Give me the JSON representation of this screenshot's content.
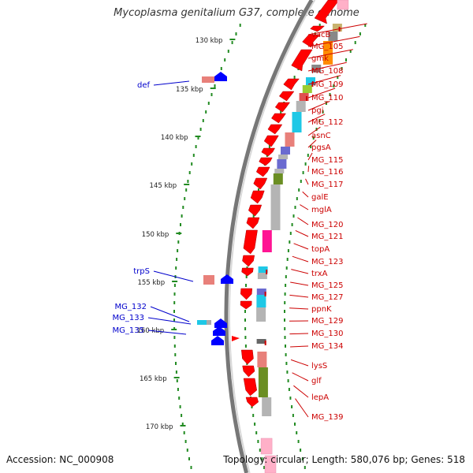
{
  "title": "Mycoplasma genitalium G37, complete genome",
  "footer": {
    "accession": "Accession: NC_000908",
    "summary": "Topology: circular; Length: 580,076 bp; Genes: 518"
  },
  "scale_ticks": [
    {
      "label": "130 kbp"
    },
    {
      "label": "135 kbp"
    },
    {
      "label": "140 kbp"
    },
    {
      "label": "145 kbp"
    },
    {
      "label": "150 kbp"
    },
    {
      "label": "155 kbp"
    },
    {
      "label": "160 kbp"
    },
    {
      "label": "165 kbp"
    },
    {
      "label": "170 kbp"
    }
  ],
  "right_labels": [
    "vacB",
    "MG_105",
    "gmk",
    "MG_108",
    "MG_109",
    "MG_110",
    "pgi",
    "MG_112",
    "asnC",
    "pgsA",
    "MG_115",
    "MG_116",
    "MG_117",
    "galE",
    "mglA",
    "MG_120",
    "MG_121",
    "topA",
    "MG_123",
    "trxA",
    "MG_125",
    "MG_127",
    "ppnK",
    "MG_129",
    "MG_130",
    "MG_134",
    "lysS",
    "glf",
    "lepA",
    "MG_139"
  ],
  "left_labels": [
    "def",
    "trpS",
    "MG_132",
    "MG_133",
    "MG_135"
  ],
  "colors": {
    "backbone": "#777777",
    "forward_gene": "#ff0000",
    "reverse_gene": "#0000ff",
    "tick": "#228b22",
    "right_label": "#cc0000",
    "left_label": "#0000cc",
    "category_palette": [
      "#c8b26e",
      "#ff8c00",
      "#1ec8e6",
      "#e8807a",
      "#6a6ad0",
      "#b4b4b4",
      "#6b8e23",
      "#ff1493",
      "#3cb371",
      "#9acd32",
      "#ffb6c1",
      "#7b68ee"
    ]
  }
}
